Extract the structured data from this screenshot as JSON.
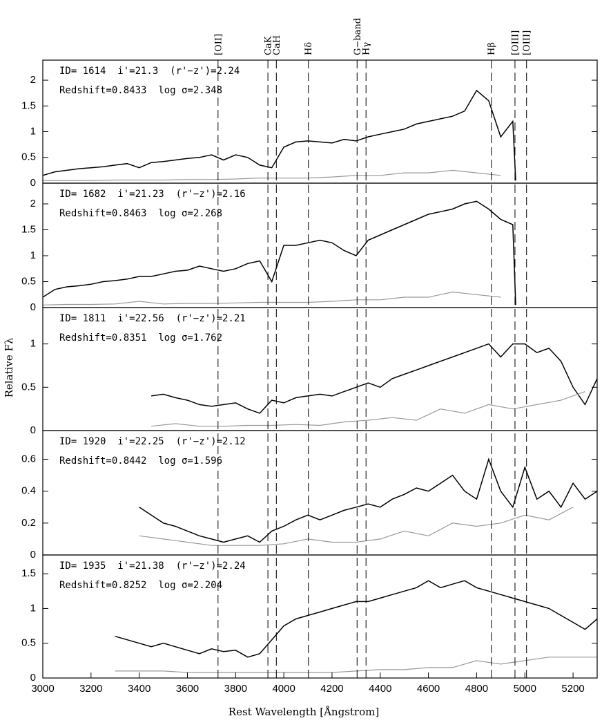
{
  "figure": {
    "xlabel": "Rest Wavelength [Ångstrom]",
    "ylabel": "Relative Fλ",
    "lines": [
      {
        "label": "[OII]",
        "value": 3727
      },
      {
        "label": "CaK",
        "value": 3934
      },
      {
        "label": "CaH",
        "value": 3969
      },
      {
        "label": "Hδ",
        "value": 4102
      },
      {
        "label": "G−band",
        "value": 4304
      },
      {
        "label": "Hγ",
        "value": 4341
      },
      {
        "label": "Hβ",
        "value": 4861
      },
      {
        "label": "[OIII]",
        "value": 4959
      },
      {
        "label": "[OIII]",
        "value": 5007
      }
    ]
  },
  "chart_data": [
    {
      "type": "line",
      "annotations": [
        "ID= 1614  i'=21.3  (r'−z')=2.24",
        "Redshift=0.8433  log σ=2.348"
      ],
      "xlim": [
        3000,
        5300
      ],
      "ylim": [
        0,
        2.39
      ],
      "yticks": [
        0,
        0.5,
        1,
        1.5,
        2
      ],
      "series": [
        {
          "color": "#000000",
          "x": [
            3000,
            3050,
            3100,
            3150,
            3200,
            3250,
            3300,
            3350,
            3400,
            3450,
            3500,
            3550,
            3600,
            3650,
            3700,
            3750,
            3800,
            3850,
            3900,
            3950,
            4000,
            4050,
            4100,
            4150,
            4200,
            4250,
            4300,
            4350,
            4400,
            4450,
            4500,
            4550,
            4600,
            4650,
            4700,
            4750,
            4800,
            4850,
            4900,
            4950,
            4962
          ],
          "values": [
            0.15,
            0.22,
            0.25,
            0.28,
            0.3,
            0.32,
            0.35,
            0.38,
            0.3,
            0.4,
            0.42,
            0.45,
            0.48,
            0.5,
            0.55,
            0.45,
            0.55,
            0.5,
            0.35,
            0.3,
            0.7,
            0.8,
            0.82,
            0.8,
            0.78,
            0.85,
            0.82,
            0.9,
            0.95,
            1.0,
            1.05,
            1.15,
            1.2,
            1.25,
            1.3,
            1.4,
            1.8,
            1.6,
            0.9,
            1.2,
            0.05
          ]
        },
        {
          "color": "#999999",
          "x": [
            3000,
            3100,
            3200,
            3300,
            3400,
            3500,
            3600,
            3700,
            3800,
            3900,
            4000,
            4100,
            4200,
            4300,
            4400,
            4500,
            4600,
            4700,
            4800,
            4900
          ],
          "values": [
            0.05,
            0.05,
            0.05,
            0.06,
            0.06,
            0.06,
            0.07,
            0.07,
            0.08,
            0.1,
            0.1,
            0.1,
            0.12,
            0.15,
            0.15,
            0.2,
            0.2,
            0.25,
            0.2,
            0.15
          ]
        }
      ]
    },
    {
      "type": "line",
      "annotations": [
        "ID= 1682  i'=21.23  (r'−z')=2.16",
        "Redshift=0.8463  log σ=2.268"
      ],
      "xlim": [
        3000,
        5300
      ],
      "ylim": [
        0,
        2.4
      ],
      "yticks": [
        0,
        0.5,
        1,
        1.5,
        2
      ],
      "series": [
        {
          "color": "#000000",
          "x": [
            3000,
            3050,
            3100,
            3150,
            3200,
            3250,
            3300,
            3350,
            3400,
            3450,
            3500,
            3550,
            3600,
            3650,
            3700,
            3750,
            3800,
            3850,
            3900,
            3950,
            4000,
            4050,
            4100,
            4150,
            4200,
            4250,
            4300,
            4350,
            4400,
            4450,
            4500,
            4550,
            4600,
            4650,
            4700,
            4750,
            4800,
            4850,
            4900,
            4950,
            4962
          ],
          "values": [
            0.2,
            0.35,
            0.4,
            0.42,
            0.45,
            0.5,
            0.52,
            0.55,
            0.6,
            0.6,
            0.65,
            0.7,
            0.72,
            0.8,
            0.75,
            0.7,
            0.75,
            0.85,
            0.9,
            0.5,
            1.2,
            1.2,
            1.25,
            1.3,
            1.25,
            1.1,
            1.0,
            1.3,
            1.4,
            1.5,
            1.6,
            1.7,
            1.8,
            1.85,
            1.9,
            2.0,
            2.05,
            1.9,
            1.7,
            1.6,
            0.05
          ]
        },
        {
          "color": "#999999",
          "x": [
            3000,
            3100,
            3200,
            3300,
            3400,
            3500,
            3600,
            3700,
            3800,
            3900,
            4000,
            4100,
            4200,
            4300,
            4400,
            4500,
            4600,
            4700,
            4800,
            4900
          ],
          "values": [
            0.05,
            0.06,
            0.06,
            0.07,
            0.12,
            0.07,
            0.08,
            0.08,
            0.09,
            0.1,
            0.1,
            0.1,
            0.12,
            0.15,
            0.15,
            0.2,
            0.2,
            0.3,
            0.25,
            0.2
          ]
        }
      ]
    },
    {
      "type": "line",
      "annotations": [
        "ID= 1811  i'=22.56  (r'−z')=2.21",
        "Redshift=0.8351  log σ=1.762"
      ],
      "xlim": [
        3000,
        5300
      ],
      "ylim": [
        0,
        1.42
      ],
      "yticks": [
        0,
        0.5,
        1
      ],
      "series": [
        {
          "color": "#000000",
          "x": [
            3450,
            3500,
            3550,
            3600,
            3650,
            3700,
            3750,
            3800,
            3850,
            3900,
            3950,
            4000,
            4050,
            4100,
            4150,
            4200,
            4250,
            4300,
            4350,
            4400,
            4450,
            4500,
            4550,
            4600,
            4650,
            4700,
            4750,
            4800,
            4850,
            4900,
            4950,
            5000,
            5050,
            5100,
            5150,
            5200,
            5250,
            5300
          ],
          "values": [
            0.4,
            0.42,
            0.38,
            0.35,
            0.3,
            0.28,
            0.3,
            0.32,
            0.25,
            0.2,
            0.35,
            0.32,
            0.38,
            0.4,
            0.42,
            0.4,
            0.45,
            0.5,
            0.55,
            0.5,
            0.6,
            0.65,
            0.7,
            0.75,
            0.8,
            0.85,
            0.9,
            0.95,
            1.0,
            0.85,
            1.0,
            1.0,
            0.9,
            0.95,
            0.8,
            0.5,
            0.3,
            0.6
          ]
        },
        {
          "color": "#999999",
          "x": [
            3450,
            3550,
            3650,
            3750,
            3850,
            3950,
            4050,
            4150,
            4250,
            4350,
            4450,
            4550,
            4650,
            4750,
            4850,
            4950,
            5050,
            5150,
            5250
          ],
          "values": [
            0.05,
            0.08,
            0.05,
            0.05,
            0.06,
            0.06,
            0.07,
            0.06,
            0.1,
            0.12,
            0.15,
            0.12,
            0.25,
            0.2,
            0.3,
            0.25,
            0.3,
            0.35,
            0.45
          ]
        }
      ]
    },
    {
      "type": "line",
      "annotations": [
        "ID= 1920  i'=22.25  (r'−z')=2.12",
        "Redshift=0.8442  log σ=1.596"
      ],
      "xlim": [
        3000,
        5300
      ],
      "ylim": [
        0,
        0.78
      ],
      "yticks": [
        0,
        0.2,
        0.4,
        0.6
      ],
      "series": [
        {
          "color": "#000000",
          "x": [
            3400,
            3450,
            3500,
            3550,
            3600,
            3650,
            3700,
            3750,
            3800,
            3850,
            3900,
            3950,
            4000,
            4050,
            4100,
            4150,
            4200,
            4250,
            4300,
            4350,
            4400,
            4450,
            4500,
            4550,
            4600,
            4650,
            4700,
            4750,
            4800,
            4850,
            4900,
            4950,
            5000,
            5050,
            5100,
            5150,
            5200,
            5250,
            5300
          ],
          "values": [
            0.3,
            0.25,
            0.2,
            0.18,
            0.15,
            0.12,
            0.1,
            0.08,
            0.1,
            0.12,
            0.08,
            0.15,
            0.18,
            0.22,
            0.25,
            0.22,
            0.25,
            0.28,
            0.3,
            0.32,
            0.3,
            0.35,
            0.38,
            0.42,
            0.4,
            0.45,
            0.5,
            0.4,
            0.35,
            0.6,
            0.4,
            0.3,
            0.55,
            0.35,
            0.4,
            0.3,
            0.45,
            0.35,
            0.4
          ]
        },
        {
          "color": "#999999",
          "x": [
            3400,
            3500,
            3600,
            3700,
            3800,
            3900,
            4000,
            4100,
            4200,
            4300,
            4400,
            4500,
            4600,
            4700,
            4800,
            4900,
            5000,
            5100,
            5200
          ],
          "values": [
            0.12,
            0.1,
            0.08,
            0.06,
            0.06,
            0.06,
            0.07,
            0.1,
            0.08,
            0.08,
            0.1,
            0.15,
            0.12,
            0.2,
            0.18,
            0.2,
            0.25,
            0.22,
            0.3
          ]
        }
      ]
    },
    {
      "type": "line",
      "annotations": [
        "ID= 1935  i'=21.38  (r'−z')=2.24",
        "Redshift=0.8252  log σ=2.204"
      ],
      "xlim": [
        3000,
        5300
      ],
      "ylim": [
        0,
        1.77
      ],
      "yticks": [
        0,
        0.5,
        1,
        1.5
      ],
      "xticks": [
        3000,
        3200,
        3400,
        3600,
        3800,
        4000,
        4200,
        4400,
        4600,
        4800,
        5000,
        5200
      ],
      "series": [
        {
          "color": "#000000",
          "x": [
            3300,
            3350,
            3400,
            3450,
            3500,
            3550,
            3600,
            3650,
            3700,
            3750,
            3800,
            3850,
            3900,
            3950,
            4000,
            4050,
            4100,
            4150,
            4200,
            4250,
            4300,
            4350,
            4400,
            4450,
            4500,
            4550,
            4600,
            4650,
            4700,
            4750,
            4800,
            4850,
            4900,
            4950,
            5000,
            5050,
            5100,
            5150,
            5200,
            5250,
            5300
          ],
          "values": [
            0.6,
            0.55,
            0.5,
            0.45,
            0.5,
            0.45,
            0.4,
            0.35,
            0.42,
            0.38,
            0.4,
            0.3,
            0.35,
            0.55,
            0.75,
            0.85,
            0.9,
            0.95,
            1.0,
            1.05,
            1.1,
            1.1,
            1.15,
            1.2,
            1.25,
            1.3,
            1.4,
            1.3,
            1.35,
            1.4,
            1.3,
            1.25,
            1.2,
            1.15,
            1.1,
            1.05,
            1.0,
            0.9,
            0.8,
            0.7,
            0.85
          ]
        },
        {
          "color": "#999999",
          "x": [
            3300,
            3400,
            3500,
            3600,
            3700,
            3800,
            3900,
            4000,
            4100,
            4200,
            4300,
            4400,
            4500,
            4600,
            4700,
            4800,
            4900,
            5000,
            5100,
            5200,
            5300
          ],
          "values": [
            0.1,
            0.1,
            0.1,
            0.08,
            0.08,
            0.08,
            0.08,
            0.08,
            0.08,
            0.08,
            0.1,
            0.12,
            0.12,
            0.15,
            0.15,
            0.25,
            0.2,
            0.25,
            0.3,
            0.3,
            0.3
          ]
        }
      ]
    }
  ]
}
